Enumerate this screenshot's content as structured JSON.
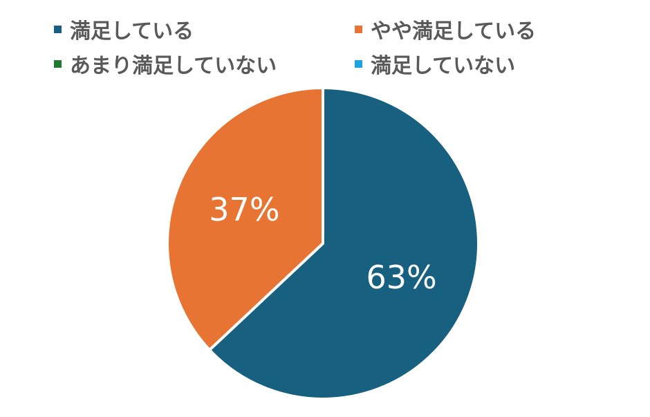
{
  "chart_data": {
    "type": "pie",
    "categories": [
      "満足している",
      "やや満足している",
      "あまり満足していない",
      "満足していない"
    ],
    "values": [
      63,
      37,
      0,
      0
    ],
    "value_labels": [
      "63%",
      "37%",
      "",
      ""
    ],
    "colors": [
      "#17607f",
      "#e87434",
      "#1e7a2e",
      "#1aa5e0"
    ],
    "legend_position": "top",
    "start_angle": "12 o'clock",
    "direction": "clockwise"
  }
}
